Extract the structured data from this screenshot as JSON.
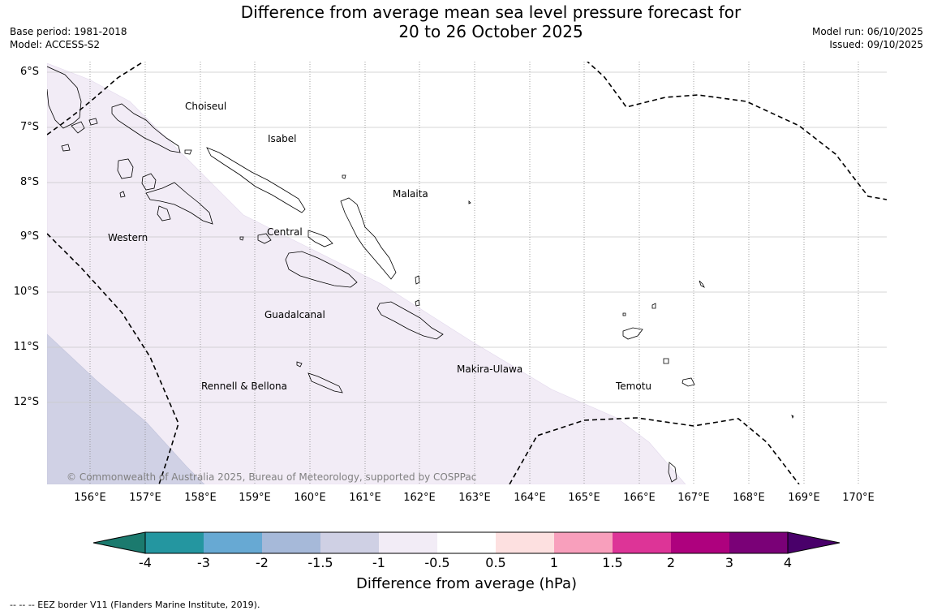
{
  "title": {
    "line1": "Difference from average mean sea level pressure forecast for",
    "line2": "20 to 26 October 2025"
  },
  "meta": {
    "base_period": "Base period: 1981-2018",
    "model": "Model: ACCESS-S2",
    "model_run": "Model run: 06/10/2025",
    "issued": "Issued: 09/10/2025"
  },
  "map": {
    "latitude_labels": [
      "6°S",
      "7°S",
      "8°S",
      "9°S",
      "10°S",
      "11°S",
      "12°S"
    ],
    "longitude_labels": [
      "156°E",
      "157°E",
      "158°E",
      "159°E",
      "160°E",
      "161°E",
      "162°E",
      "163°E",
      "164°E",
      "165°E",
      "166°E",
      "167°E",
      "168°E",
      "169°E",
      "170°E"
    ],
    "provinces": [
      "Choiseul",
      "Isabel",
      "Malaita",
      "Western",
      "Central",
      "Guadalcanal",
      "Makira-Ulawa",
      "Rennell & Bellona",
      "Temotu"
    ],
    "copyright": "© Commonwealth of Australia 2025, Bureau of Meteorology, supported by COSPPac"
  },
  "colorbar": {
    "ticks": [
      "-4",
      "-3",
      "-2",
      "-1.5",
      "-1",
      "-0.5",
      "0.5",
      "1",
      "1.5",
      "2",
      "3",
      "4"
    ],
    "colors": [
      "#1b7a6e",
      "#2496a0",
      "#67a9d3",
      "#a6b9d9",
      "#cfd0e4",
      "#f2ecf6",
      "#ffffff",
      "#fde0e0",
      "#f89fbc",
      "#dd3497",
      "#ae017e",
      "#7a0177",
      "#49006a"
    ],
    "title": "Difference from average (hPa)"
  },
  "footer": "--  --  -- EEZ border V11 (Flanders Marine Institute, 2019)."
}
